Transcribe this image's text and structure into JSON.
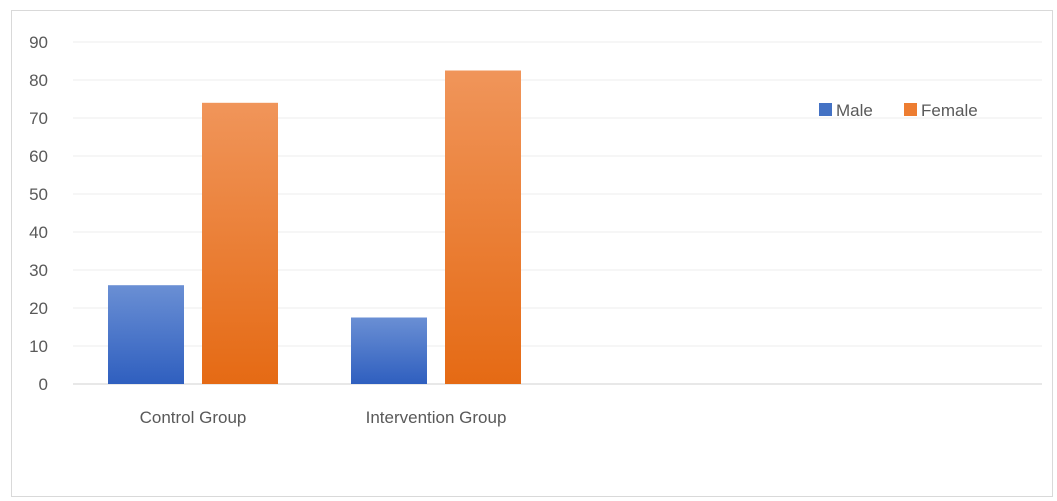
{
  "chart_data": {
    "type": "bar",
    "categories": [
      "Control Group",
      "Intervention Group"
    ],
    "series": [
      {
        "name": "Male",
        "values": [
          26,
          17.5
        ],
        "color": "#4472c4"
      },
      {
        "name": "Female",
        "values": [
          74,
          82.5
        ],
        "color": "#ed7d31"
      }
    ],
    "ylim": [
      0,
      90
    ],
    "yticks": [
      0,
      10,
      20,
      30,
      40,
      50,
      60,
      70,
      80,
      90
    ],
    "grid": true,
    "legend_position": "top-right"
  }
}
